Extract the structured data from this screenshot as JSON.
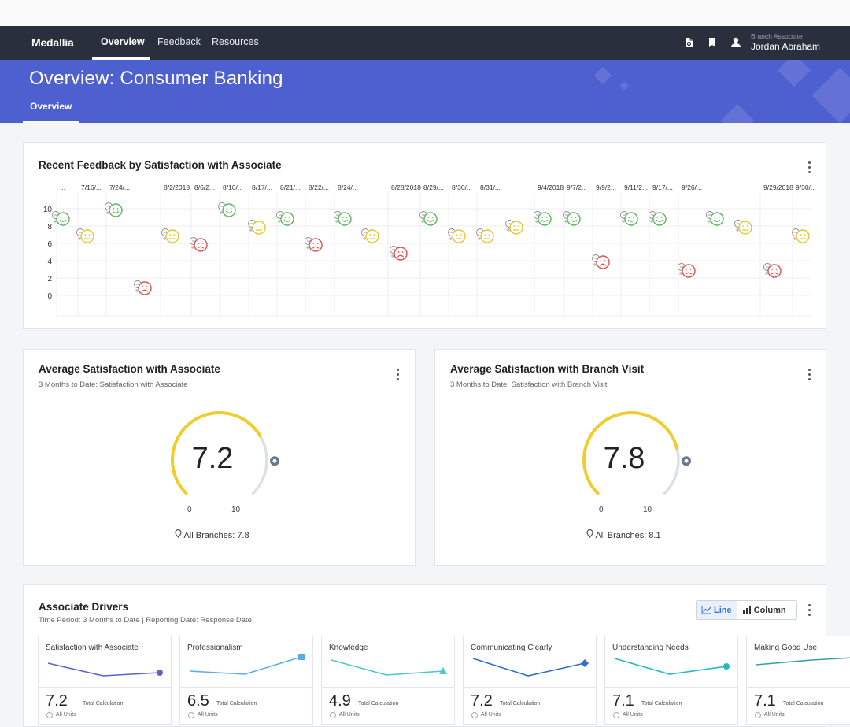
{
  "nav": {
    "logo": "Medallia",
    "items": [
      "Overview",
      "Feedback",
      "Resources"
    ],
    "user_role": "Branch Associate",
    "user_name": "Jordan Abraham"
  },
  "banner": {
    "title": "Overview: Consumer Banking",
    "tab": "Overview"
  },
  "feedback_chart": {
    "title": "Recent Feedback by Satisfaction with Associate",
    "chart_data": {
      "type": "scatter",
      "x_tick_labels": [
        "...",
        "7/16/...",
        "7/24/...",
        "8/2/2018",
        "8/6/2...",
        "8/10/...",
        "8/17/...",
        "8/21/...",
        "8/22/...",
        "8/24/...",
        "8/28/2018",
        "8/29/...",
        "8/30/...",
        "8/31/...",
        "9/4/2018",
        "9/7/2...",
        "9/9/2...",
        "9/11/2...",
        "9/17/...",
        "9/26/...",
        "9/29/2018",
        "9/30/..."
      ],
      "y_tick_labels": [
        "10",
        "8",
        "6",
        "4",
        "2",
        "0"
      ],
      "ylim": [
        0,
        10
      ],
      "grid": true,
      "points": [
        {
          "y": 9,
          "s": "happy"
        },
        {
          "y": 7,
          "s": "neutral"
        },
        {
          "y": 10,
          "s": "happy"
        },
        {
          "y": 1,
          "s": "sad"
        },
        {
          "y": 7,
          "s": "neutral"
        },
        {
          "y": 6,
          "s": "sad"
        },
        {
          "y": 10,
          "s": "happy"
        },
        {
          "y": 8,
          "s": "neutral"
        },
        {
          "y": 9,
          "s": "happy"
        },
        {
          "y": 6,
          "s": "sad"
        },
        {
          "y": 9,
          "s": "happy"
        },
        {
          "y": 7,
          "s": "neutral"
        },
        {
          "y": 5,
          "s": "sad"
        },
        {
          "y": 9,
          "s": "happy"
        },
        {
          "y": 7,
          "s": "neutral"
        },
        {
          "y": 7,
          "s": "neutral"
        },
        {
          "y": 8,
          "s": "neutral"
        },
        {
          "y": 9,
          "s": "happy"
        },
        {
          "y": 9,
          "s": "happy"
        },
        {
          "y": 4,
          "s": "sad"
        },
        {
          "y": 9,
          "s": "happy"
        },
        {
          "y": 9,
          "s": "happy"
        },
        {
          "y": 3,
          "s": "sad"
        },
        {
          "y": 9,
          "s": "happy"
        },
        {
          "y": 8,
          "s": "neutral"
        },
        {
          "y": 3,
          "s": "sad"
        },
        {
          "y": 7,
          "s": "neutral"
        }
      ],
      "colors": {
        "happy": "#5cb85c",
        "neutral": "#e8c531",
        "sad": "#d9534f"
      }
    }
  },
  "gauges": [
    {
      "title": "Average Satisfaction with Associate",
      "subtitle": "3 Months to Date: Satisfaction with Associate",
      "value": "7.2",
      "fraction": 0.72,
      "min": "0",
      "max": "10",
      "branches": "All Branches: 7.8"
    },
    {
      "title": "Average Satisfaction with Branch Visit",
      "subtitle": "3 Months to Date: Satisfaction with Branch Visit",
      "value": "7.8",
      "fraction": 0.78,
      "min": "0",
      "max": "10",
      "branches": "All Branches: 8.1"
    }
  ],
  "drivers": {
    "title": "Associate Drivers",
    "subtitle": "Time Period: 3 Months to Date | Reporting Date: Response Date",
    "toggle_line": "Line",
    "toggle_column": "Column",
    "calc_label": "Total Calculation",
    "units_label": "All Units",
    "items": [
      {
        "name": "Satisfaction with Associate",
        "value": "7.2",
        "color": "#5b62c9",
        "marker": "circle",
        "trend": [
          10,
          26,
          22
        ]
      },
      {
        "name": "Professionalism",
        "value": "6.5",
        "color": "#5aaee6",
        "marker": "square",
        "trend": [
          20,
          24,
          2
        ]
      },
      {
        "name": "Knowledge",
        "value": "4.9",
        "color": "#45c8d8",
        "marker": "triangle",
        "trend": [
          6,
          25,
          20
        ]
      },
      {
        "name": "Communicating Clearly",
        "value": "7.2",
        "color": "#2f6fd0",
        "marker": "diamond",
        "trend": [
          4,
          26,
          10
        ]
      },
      {
        "name": "Understanding Needs",
        "value": "7.1",
        "color": "#22b8c8",
        "marker": "circle",
        "trend": [
          4,
          24,
          14
        ]
      },
      {
        "name": "Making Good Use",
        "value": "7.1",
        "color": "#3aa0a8",
        "marker": "circle",
        "trend": [
          12,
          6,
          2
        ]
      }
    ]
  }
}
